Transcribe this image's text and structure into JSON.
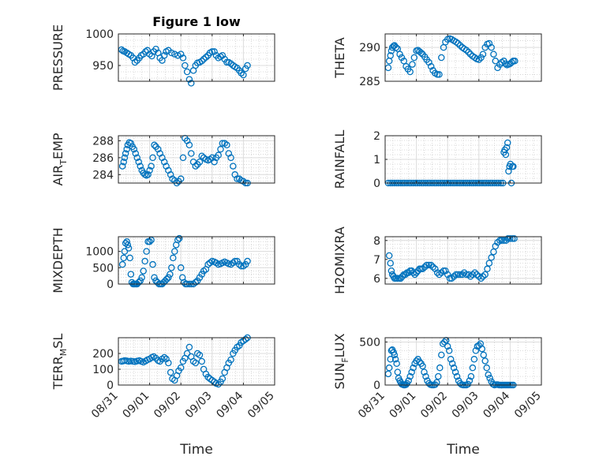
{
  "figure": {
    "title": "Figure 1 low",
    "xlabel": "Time",
    "x_ticks": [
      "08/31",
      "09/01",
      "09/02",
      "09/03",
      "09/04",
      "09/05"
    ],
    "marker_color": "#0072BD",
    "grid_color": "#cfcfcf"
  },
  "chart_data": [
    {
      "type": "scatter",
      "ylabel": "PRESSURE",
      "title": "Figure 1 low",
      "xlim": [
        0,
        5
      ],
      "ylim": [
        925,
        1000
      ],
      "yticks": [
        950,
        1000
      ],
      "x": [
        0.1,
        0.15,
        0.2,
        0.27,
        0.33,
        0.4,
        0.47,
        0.53,
        0.6,
        0.67,
        0.73,
        0.8,
        0.87,
        0.93,
        1.0,
        1.07,
        1.13,
        1.2,
        1.27,
        1.33,
        1.4,
        1.47,
        1.53,
        1.6,
        1.7,
        1.8,
        1.9,
        2.0,
        2.07,
        2.13,
        2.2,
        2.27,
        2.33,
        2.4,
        2.47,
        2.53,
        2.6,
        2.67,
        2.73,
        2.8,
        2.87,
        2.93,
        3.0,
        3.07,
        3.13,
        3.2,
        3.27,
        3.33,
        3.4,
        3.47,
        3.53,
        3.6,
        3.67,
        3.73,
        3.8,
        3.87,
        3.93,
        4.0,
        4.07,
        4.13
      ],
      "y": [
        975,
        973,
        972,
        970,
        968,
        966,
        962,
        955,
        958,
        962,
        966,
        968,
        972,
        974,
        968,
        965,
        972,
        976,
        970,
        962,
        958,
        966,
        972,
        974,
        970,
        968,
        966,
        968,
        962,
        950,
        940,
        928,
        922,
        942,
        950,
        954,
        955,
        957,
        960,
        963,
        966,
        970,
        972,
        972,
        966,
        962,
        964,
        966,
        960,
        955,
        955,
        953,
        950,
        948,
        946,
        942,
        938,
        935,
        945,
        950
      ]
    },
    {
      "type": "scatter",
      "ylabel": "THETA",
      "xlim": [
        0,
        5
      ],
      "ylim": [
        285,
        292
      ],
      "yticks": [
        285,
        290
      ],
      "x": [
        0.1,
        0.13,
        0.17,
        0.2,
        0.23,
        0.27,
        0.3,
        0.35,
        0.4,
        0.47,
        0.53,
        0.6,
        0.67,
        0.73,
        0.8,
        0.87,
        0.93,
        1.0,
        1.05,
        1.1,
        1.15,
        1.2,
        1.27,
        1.33,
        1.4,
        1.47,
        1.53,
        1.6,
        1.67,
        1.73,
        1.8,
        1.87,
        1.93,
        2.0,
        2.07,
        2.13,
        2.2,
        2.27,
        2.33,
        2.4,
        2.47,
        2.53,
        2.6,
        2.67,
        2.73,
        2.8,
        2.87,
        2.93,
        3.0,
        3.07,
        3.13,
        3.2,
        3.27,
        3.33,
        3.4,
        3.47,
        3.53,
        3.6,
        3.67,
        3.73,
        3.8,
        3.85,
        3.9,
        3.95,
        4.0,
        4.05,
        4.1,
        4.15
      ],
      "y": [
        287,
        288,
        288.8,
        289.5,
        290,
        290.2,
        290.3,
        290,
        289.8,
        289,
        288.5,
        288,
        287.2,
        286.8,
        286.4,
        287.5,
        288.5,
        289.5,
        289.6,
        289.4,
        289.2,
        289,
        288.6,
        288.2,
        287.8,
        287.2,
        286.6,
        286.2,
        286,
        286,
        288.5,
        290,
        290.8,
        291.2,
        291.3,
        291.2,
        291,
        290.8,
        290.6,
        290.3,
        290,
        289.8,
        289.6,
        289.3,
        289,
        288.7,
        288.5,
        288.3,
        288.2,
        288.5,
        289,
        290,
        290.5,
        290.6,
        290,
        289,
        288,
        287,
        287.5,
        287.8,
        288,
        287.6,
        287.4,
        287.5,
        287.6,
        287.8,
        288,
        288
      ]
    },
    {
      "type": "scatter",
      "ylabel": "AIR_TEMP",
      "xlim": [
        0,
        5
      ],
      "ylim": [
        283,
        288.6
      ],
      "yticks": [
        284,
        286,
        288
      ],
      "x": [
        0.13,
        0.17,
        0.2,
        0.23,
        0.27,
        0.3,
        0.35,
        0.4,
        0.45,
        0.5,
        0.55,
        0.6,
        0.65,
        0.7,
        0.75,
        0.8,
        0.85,
        0.9,
        0.95,
        1.0,
        1.05,
        1.1,
        1.15,
        1.2,
        1.27,
        1.33,
        1.4,
        1.47,
        1.53,
        1.6,
        1.67,
        1.73,
        1.8,
        1.87,
        1.93,
        2.0,
        2.07,
        2.13,
        2.2,
        2.27,
        2.33,
        2.4,
        2.47,
        2.53,
        2.6,
        2.67,
        2.73,
        2.8,
        2.87,
        2.93,
        3.0,
        3.07,
        3.13,
        3.2,
        3.27,
        3.33,
        3.4,
        3.47,
        3.53,
        3.6,
        3.67,
        3.73,
        3.8,
        3.87,
        3.93,
        4.0,
        4.07,
        4.13
      ],
      "y": [
        285,
        285.5,
        286,
        286.5,
        287,
        287.5,
        287.8,
        287.7,
        287.3,
        287,
        286.5,
        286,
        285.5,
        285,
        284.5,
        284.2,
        284,
        283.9,
        284,
        284.5,
        285,
        286,
        287.5,
        287.3,
        287,
        286.5,
        286,
        285.5,
        285,
        284.5,
        284,
        283.5,
        283.3,
        283,
        283.2,
        283.5,
        286,
        288.3,
        288,
        287.5,
        286.5,
        285.5,
        285,
        285.2,
        285.5,
        286.2,
        286,
        285.8,
        285.7,
        285.8,
        286,
        285.5,
        286,
        286.3,
        287,
        287.7,
        287.7,
        287.5,
        286.5,
        286,
        285,
        284,
        283.5,
        283.5,
        283.3,
        283.2,
        283,
        283
      ]
    },
    {
      "type": "scatter",
      "ylabel": "RAINFALL",
      "xlim": [
        0,
        5
      ],
      "ylim": [
        0,
        2
      ],
      "yticks": [
        0,
        1,
        2
      ],
      "x": [
        0.1,
        0.17,
        0.23,
        0.3,
        0.37,
        0.43,
        0.5,
        0.57,
        0.63,
        0.7,
        0.77,
        0.83,
        0.9,
        0.97,
        1.03,
        1.1,
        1.17,
        1.23,
        1.3,
        1.37,
        1.43,
        1.5,
        1.57,
        1.63,
        1.7,
        1.77,
        1.83,
        1.9,
        1.97,
        2.03,
        2.1,
        2.17,
        2.23,
        2.3,
        2.37,
        2.43,
        2.5,
        2.57,
        2.63,
        2.7,
        2.77,
        2.83,
        2.9,
        2.97,
        3.03,
        3.1,
        3.17,
        3.23,
        3.3,
        3.37,
        3.43,
        3.5,
        3.57,
        3.63,
        3.7,
        3.77,
        3.8,
        3.83,
        3.86,
        3.89,
        3.92,
        3.95,
        3.98,
        4.01,
        4.04,
        4.07,
        4.1
      ],
      "y": [
        0,
        0,
        0,
        0,
        0,
        0,
        0,
        0,
        0,
        0,
        0,
        0,
        0,
        0,
        0,
        0,
        0,
        0,
        0,
        0,
        0,
        0,
        0,
        0,
        0,
        0,
        0,
        0,
        0,
        0,
        0,
        0,
        0,
        0,
        0,
        0,
        0,
        0,
        0,
        0,
        0,
        0,
        0,
        0,
        0,
        0,
        0,
        0,
        0,
        0,
        0,
        0,
        0,
        0,
        0,
        0,
        1.3,
        1.4,
        1.2,
        1.5,
        1.7,
        0.5,
        0.7,
        0.8,
        0,
        0.7,
        0.7
      ]
    },
    {
      "type": "scatter",
      "ylabel": "MIXDEPTH",
      "xlim": [
        0,
        5
      ],
      "ylim": [
        0,
        1450
      ],
      "yticks": [
        0,
        500,
        1000
      ],
      "x": [
        0.13,
        0.17,
        0.2,
        0.23,
        0.27,
        0.3,
        0.33,
        0.37,
        0.4,
        0.43,
        0.47,
        0.5,
        0.53,
        0.57,
        0.6,
        0.65,
        0.7,
        0.75,
        0.8,
        0.85,
        0.9,
        0.95,
        1.0,
        1.05,
        1.1,
        1.15,
        1.2,
        1.25,
        1.3,
        1.35,
        1.4,
        1.45,
        1.5,
        1.55,
        1.6,
        1.65,
        1.7,
        1.75,
        1.8,
        1.85,
        1.9,
        1.95,
        2.0,
        2.05,
        2.1,
        2.15,
        2.2,
        2.27,
        2.33,
        2.4,
        2.47,
        2.53,
        2.6,
        2.67,
        2.73,
        2.8,
        2.87,
        2.93,
        3.0,
        3.07,
        3.13,
        3.2,
        3.27,
        3.33,
        3.4,
        3.47,
        3.53,
        3.6,
        3.67,
        3.73,
        3.8,
        3.87,
        3.93,
        4.0,
        4.07,
        4.13
      ],
      "y": [
        600,
        800,
        1000,
        1250,
        1300,
        1200,
        1100,
        800,
        300,
        50,
        0,
        0,
        0,
        0,
        0,
        50,
        100,
        200,
        400,
        700,
        1000,
        1300,
        1300,
        1350,
        600,
        200,
        100,
        50,
        0,
        0,
        0,
        50,
        100,
        150,
        200,
        300,
        500,
        800,
        1000,
        1200,
        1350,
        1400,
        500,
        200,
        50,
        0,
        0,
        0,
        0,
        0,
        50,
        100,
        200,
        300,
        400,
        450,
        600,
        650,
        700,
        680,
        650,
        600,
        620,
        650,
        680,
        650,
        620,
        600,
        650,
        700,
        700,
        600,
        550,
        550,
        600,
        700
      ]
    },
    {
      "type": "scatter",
      "ylabel": "H2OMIXRA",
      "xlim": [
        0,
        5
      ],
      "ylim": [
        5.7,
        8.2
      ],
      "yticks": [
        6,
        7,
        8
      ],
      "x": [
        0.13,
        0.17,
        0.2,
        0.23,
        0.27,
        0.3,
        0.35,
        0.4,
        0.45,
        0.5,
        0.55,
        0.6,
        0.65,
        0.7,
        0.75,
        0.8,
        0.85,
        0.9,
        0.95,
        1.0,
        1.05,
        1.1,
        1.15,
        1.2,
        1.27,
        1.33,
        1.4,
        1.47,
        1.53,
        1.6,
        1.67,
        1.73,
        1.8,
        1.87,
        1.93,
        2.0,
        2.07,
        2.13,
        2.2,
        2.27,
        2.33,
        2.4,
        2.47,
        2.53,
        2.6,
        2.67,
        2.73,
        2.8,
        2.87,
        2.93,
        3.0,
        3.07,
        3.13,
        3.2,
        3.27,
        3.33,
        3.4,
        3.47,
        3.53,
        3.6,
        3.67,
        3.73,
        3.8,
        3.87,
        3.93,
        4.0,
        4.07,
        4.13
      ],
      "y": [
        7.2,
        6.8,
        6.4,
        6.2,
        6.1,
        6,
        6,
        6,
        6,
        6,
        6.1,
        6.2,
        6.2,
        6.3,
        6.3,
        6.4,
        6.4,
        6.3,
        6.2,
        6.3,
        6.4,
        6.5,
        6.5,
        6.5,
        6.6,
        6.7,
        6.7,
        6.7,
        6.6,
        6.5,
        6.3,
        6.2,
        6.3,
        6.4,
        6.4,
        6.2,
        6,
        6,
        6.1,
        6.2,
        6.2,
        6.2,
        6.2,
        6.3,
        6.2,
        6.2,
        6.1,
        6.2,
        6.3,
        6.2,
        6.1,
        6,
        6.1,
        6.2,
        6.5,
        6.8,
        7.1,
        7.4,
        7.7,
        7.9,
        8,
        8,
        8,
        8,
        8.1,
        8.1,
        8.1,
        8.1
      ]
    },
    {
      "type": "scatter",
      "ylabel": "TERR_MSL",
      "xlim": [
        0,
        5
      ],
      "ylim": [
        0,
        300
      ],
      "yticks": [
        0,
        100,
        200
      ],
      "x": [
        0.1,
        0.15,
        0.2,
        0.27,
        0.33,
        0.4,
        0.47,
        0.53,
        0.6,
        0.67,
        0.73,
        0.8,
        0.87,
        0.93,
        1.0,
        1.07,
        1.13,
        1.2,
        1.27,
        1.33,
        1.4,
        1.47,
        1.53,
        1.6,
        1.67,
        1.73,
        1.8,
        1.87,
        1.93,
        2.0,
        2.07,
        2.13,
        2.2,
        2.27,
        2.33,
        2.4,
        2.47,
        2.53,
        2.6,
        2.67,
        2.73,
        2.8,
        2.87,
        2.93,
        3.0,
        3.07,
        3.13,
        3.2,
        3.27,
        3.33,
        3.4,
        3.47,
        3.53,
        3.6,
        3.67,
        3.73,
        3.8,
        3.87,
        3.93,
        4.0,
        4.07,
        4.13
      ],
      "y": [
        150,
        152,
        155,
        153,
        150,
        152,
        150,
        148,
        152,
        155,
        150,
        145,
        152,
        160,
        165,
        175,
        180,
        170,
        155,
        150,
        165,
        175,
        165,
        140,
        80,
        40,
        30,
        60,
        90,
        110,
        150,
        170,
        200,
        240,
        180,
        150,
        140,
        200,
        190,
        150,
        100,
        70,
        50,
        40,
        30,
        20,
        10,
        5,
        20,
        40,
        80,
        110,
        140,
        160,
        200,
        220,
        240,
        250,
        270,
        280,
        290,
        300
      ]
    },
    {
      "type": "scatter",
      "ylabel": "SUN_FLUX",
      "xlim": [
        0,
        5
      ],
      "ylim": [
        0,
        550
      ],
      "yticks": [
        0,
        500
      ],
      "x": [
        0.1,
        0.13,
        0.17,
        0.2,
        0.23,
        0.27,
        0.3,
        0.33,
        0.37,
        0.4,
        0.43,
        0.47,
        0.5,
        0.53,
        0.57,
        0.6,
        0.63,
        0.67,
        0.7,
        0.75,
        0.8,
        0.85,
        0.9,
        0.95,
        1.0,
        1.05,
        1.1,
        1.15,
        1.2,
        1.25,
        1.3,
        1.35,
        1.4,
        1.45,
        1.5,
        1.55,
        1.6,
        1.65,
        1.7,
        1.75,
        1.8,
        1.85,
        1.9,
        1.95,
        2.0,
        2.05,
        2.1,
        2.15,
        2.2,
        2.25,
        2.3,
        2.35,
        2.4,
        2.45,
        2.5,
        2.55,
        2.6,
        2.65,
        2.7,
        2.75,
        2.8,
        2.85,
        2.9,
        2.95,
        3.0,
        3.05,
        3.1,
        3.15,
        3.2,
        3.25,
        3.3,
        3.35,
        3.4,
        3.45,
        3.5,
        3.55,
        3.6,
        3.65,
        3.7,
        3.75,
        3.8,
        3.85,
        3.9,
        3.95,
        4.0,
        4.05,
        4.1
      ],
      "y": [
        130,
        200,
        300,
        400,
        410,
        380,
        350,
        300,
        250,
        150,
        80,
        50,
        30,
        10,
        5,
        0,
        0,
        5,
        20,
        50,
        100,
        150,
        200,
        250,
        280,
        300,
        270,
        250,
        220,
        150,
        100,
        50,
        20,
        5,
        0,
        0,
        5,
        30,
        100,
        200,
        350,
        480,
        500,
        520,
        450,
        400,
        300,
        250,
        200,
        150,
        100,
        50,
        20,
        5,
        0,
        0,
        0,
        10,
        50,
        100,
        200,
        300,
        400,
        450,
        460,
        480,
        420,
        350,
        280,
        200,
        120,
        80,
        40,
        10,
        0,
        5,
        5,
        0,
        0,
        0,
        0,
        0,
        0,
        0,
        0,
        0,
        0
      ]
    }
  ]
}
